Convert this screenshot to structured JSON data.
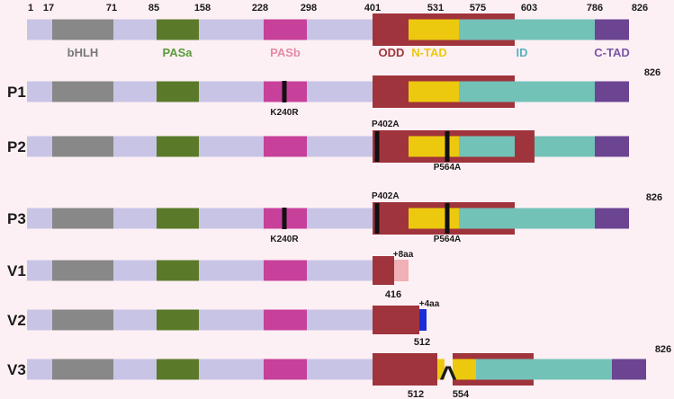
{
  "ruler": {
    "positions": [
      {
        "id": "p1",
        "label": "1"
      },
      {
        "id": "p17",
        "label": "17"
      },
      {
        "id": "p71",
        "label": "71"
      },
      {
        "id": "p85",
        "label": "85"
      },
      {
        "id": "p158",
        "label": "158"
      },
      {
        "id": "p228",
        "label": "228"
      },
      {
        "id": "p298",
        "label": "298"
      },
      {
        "id": "p401",
        "label": "401"
      },
      {
        "id": "p531",
        "label": "531"
      },
      {
        "id": "p575",
        "label": "575"
      },
      {
        "id": "p603",
        "label": "603"
      },
      {
        "id": "p786",
        "label": "786"
      },
      {
        "id": "p826",
        "label": "826"
      }
    ]
  },
  "domains": [
    {
      "key": "bhlh",
      "label": "bHLH",
      "color": "#888888"
    },
    {
      "key": "pasa",
      "label": "PASa",
      "color": "#5a7a2a"
    },
    {
      "key": "pasb",
      "label": "PASb",
      "color": "#c7409a"
    },
    {
      "key": "odd",
      "label": "ODD",
      "color": "#a0343c"
    },
    {
      "key": "ntad",
      "label": "N-TAD",
      "color": "#ecc90e"
    },
    {
      "key": "id",
      "label": "ID",
      "color": "#73c2b8"
    },
    {
      "key": "ctad",
      "label": "C-TAD",
      "color": "#6b4592"
    }
  ],
  "domain_label_colors": {
    "bhlh": "#777777",
    "pasa": "#5a9a3a",
    "pasb": "#e58aa6",
    "odd": "#a0343c",
    "ntad": "#ecc90e",
    "id": "#5bb0c0",
    "ctad": "#7a55a6"
  },
  "colors": {
    "backbone": "#c8c4e6",
    "mutation_mark": "#111111",
    "v1_extension": "#f0b0b5",
    "v2_extension": "#1b2fd6",
    "background": "#fdf0f4"
  },
  "rows": [
    {
      "key": "P1",
      "label": "P1",
      "end_label": "826",
      "mutations": [
        {
          "label": "K240R"
        }
      ]
    },
    {
      "key": "P2",
      "label": "P2",
      "mutations": [
        {
          "label": "P402A"
        },
        {
          "label": "P564A"
        }
      ]
    },
    {
      "key": "P3",
      "label": "P3",
      "end_label": "826",
      "mutations": [
        {
          "label": "K240R"
        },
        {
          "label": "P402A"
        },
        {
          "label": "P564A"
        }
      ]
    },
    {
      "key": "V1",
      "label": "V1",
      "end_label": "416",
      "extension_label": "+8aa"
    },
    {
      "key": "V2",
      "label": "V2",
      "end_label": "512",
      "extension_label": "+4aa"
    },
    {
      "key": "V3",
      "label": "V3",
      "end_label": "826",
      "deletion_start": "512",
      "deletion_end": "554",
      "deletion_symbol": "^"
    }
  ]
}
